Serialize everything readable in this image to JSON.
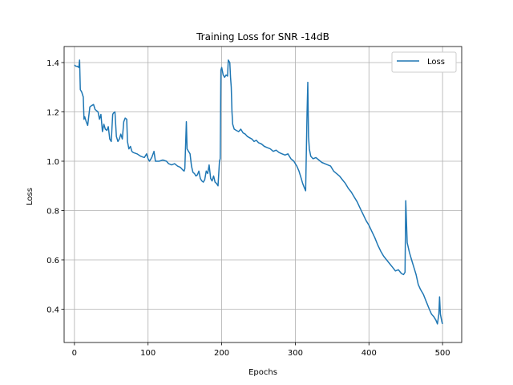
{
  "chart_data": {
    "type": "line",
    "title": "Training Loss for SNR -14dB",
    "xlabel": "Epochs",
    "ylabel": "Loss",
    "xlim": [
      -14,
      526
    ],
    "ylim": [
      0.265,
      1.465
    ],
    "x_ticks": [
      0,
      100,
      200,
      300,
      400,
      500
    ],
    "y_ticks": [
      0.4,
      0.6,
      0.8,
      1.0,
      1.2,
      1.4
    ],
    "y_tick_labels": [
      "0.4",
      "0.6",
      "0.8",
      "1.0",
      "1.2",
      "1.4"
    ],
    "grid": true,
    "legend_position": "top-right",
    "color": "#1f77b4",
    "series": [
      {
        "name": "Loss",
        "points": [
          [
            0,
            1.39
          ],
          [
            2,
            1.385
          ],
          [
            4,
            1.385
          ],
          [
            6,
            1.38
          ],
          [
            7,
            1.41
          ],
          [
            8,
            1.29
          ],
          [
            10,
            1.28
          ],
          [
            12,
            1.26
          ],
          [
            13,
            1.17
          ],
          [
            14,
            1.18
          ],
          [
            16,
            1.16
          ],
          [
            18,
            1.145
          ],
          [
            19,
            1.17
          ],
          [
            21,
            1.22
          ],
          [
            23,
            1.225
          ],
          [
            26,
            1.23
          ],
          [
            28,
            1.21
          ],
          [
            30,
            1.205
          ],
          [
            32,
            1.2
          ],
          [
            34,
            1.17
          ],
          [
            36,
            1.19
          ],
          [
            38,
            1.12
          ],
          [
            40,
            1.15
          ],
          [
            42,
            1.13
          ],
          [
            44,
            1.125
          ],
          [
            46,
            1.14
          ],
          [
            48,
            1.09
          ],
          [
            50,
            1.08
          ],
          [
            52,
            1.19
          ],
          [
            53,
            1.195
          ],
          [
            55,
            1.2
          ],
          [
            57,
            1.1
          ],
          [
            59,
            1.08
          ],
          [
            61,
            1.09
          ],
          [
            63,
            1.11
          ],
          [
            65,
            1.09
          ],
          [
            67,
            1.16
          ],
          [
            69,
            1.175
          ],
          [
            71,
            1.17
          ],
          [
            72,
            1.08
          ],
          [
            74,
            1.05
          ],
          [
            76,
            1.06
          ],
          [
            78,
            1.04
          ],
          [
            80,
            1.035
          ],
          [
            85,
            1.03
          ],
          [
            90,
            1.02
          ],
          [
            95,
            1.015
          ],
          [
            98,
            1.03
          ],
          [
            100,
            1.01
          ],
          [
            102,
            1.0
          ],
          [
            105,
            1.015
          ],
          [
            108,
            1.04
          ],
          [
            110,
            1.0
          ],
          [
            115,
            1.0
          ],
          [
            120,
            1.005
          ],
          [
            125,
            1.0
          ],
          [
            128,
            0.99
          ],
          [
            132,
            0.985
          ],
          [
            136,
            0.99
          ],
          [
            140,
            0.98
          ],
          [
            144,
            0.975
          ],
          [
            147,
            0.965
          ],
          [
            149,
            0.96
          ],
          [
            150,
            0.97
          ],
          [
            152,
            1.16
          ],
          [
            153,
            1.05
          ],
          [
            155,
            1.04
          ],
          [
            157,
            1.03
          ],
          [
            159,
            0.98
          ],
          [
            161,
            0.955
          ],
          [
            163,
            0.95
          ],
          [
            165,
            0.94
          ],
          [
            167,
            0.945
          ],
          [
            169,
            0.96
          ],
          [
            171,
            0.93
          ],
          [
            173,
            0.92
          ],
          [
            175,
            0.915
          ],
          [
            177,
            0.925
          ],
          [
            179,
            0.96
          ],
          [
            181,
            0.95
          ],
          [
            183,
            0.985
          ],
          [
            185,
            0.93
          ],
          [
            187,
            0.92
          ],
          [
            189,
            0.94
          ],
          [
            191,
            0.915
          ],
          [
            193,
            0.91
          ],
          [
            195,
            0.9
          ],
          [
            197,
            1.0
          ],
          [
            198,
            1.01
          ],
          [
            199,
            1.37
          ],
          [
            200,
            1.38
          ],
          [
            202,
            1.35
          ],
          [
            204,
            1.34
          ],
          [
            206,
            1.35
          ],
          [
            208,
            1.345
          ],
          [
            209,
            1.41
          ],
          [
            211,
            1.4
          ],
          [
            212,
            1.34
          ],
          [
            213,
            1.3
          ],
          [
            214,
            1.2
          ],
          [
            215,
            1.15
          ],
          [
            217,
            1.13
          ],
          [
            220,
            1.125
          ],
          [
            223,
            1.12
          ],
          [
            226,
            1.13
          ],
          [
            229,
            1.115
          ],
          [
            232,
            1.11
          ],
          [
            235,
            1.1
          ],
          [
            238,
            1.095
          ],
          [
            241,
            1.09
          ],
          [
            244,
            1.08
          ],
          [
            247,
            1.085
          ],
          [
            250,
            1.075
          ],
          [
            254,
            1.07
          ],
          [
            258,
            1.06
          ],
          [
            262,
            1.055
          ],
          [
            266,
            1.05
          ],
          [
            270,
            1.04
          ],
          [
            274,
            1.045
          ],
          [
            278,
            1.035
          ],
          [
            282,
            1.03
          ],
          [
            286,
            1.025
          ],
          [
            290,
            1.03
          ],
          [
            294,
            1.01
          ],
          [
            298,
            1.0
          ],
          [
            302,
            0.98
          ],
          [
            305,
            0.96
          ],
          [
            308,
            0.93
          ],
          [
            310,
            0.91
          ],
          [
            312,
            0.895
          ],
          [
            314,
            0.88
          ],
          [
            316,
            1.2
          ],
          [
            317,
            1.32
          ],
          [
            318,
            1.1
          ],
          [
            319,
            1.05
          ],
          [
            321,
            1.02
          ],
          [
            324,
            1.01
          ],
          [
            328,
            1.015
          ],
          [
            332,
            1.005
          ],
          [
            336,
            0.995
          ],
          [
            340,
            0.99
          ],
          [
            344,
            0.985
          ],
          [
            348,
            0.98
          ],
          [
            352,
            0.96
          ],
          [
            356,
            0.95
          ],
          [
            360,
            0.94
          ],
          [
            364,
            0.925
          ],
          [
            368,
            0.91
          ],
          [
            372,
            0.89
          ],
          [
            376,
            0.875
          ],
          [
            380,
            0.855
          ],
          [
            384,
            0.835
          ],
          [
            388,
            0.81
          ],
          [
            392,
            0.785
          ],
          [
            396,
            0.76
          ],
          [
            400,
            0.74
          ],
          [
            404,
            0.715
          ],
          [
            408,
            0.69
          ],
          [
            412,
            0.66
          ],
          [
            416,
            0.635
          ],
          [
            420,
            0.615
          ],
          [
            424,
            0.6
          ],
          [
            428,
            0.585
          ],
          [
            432,
            0.57
          ],
          [
            436,
            0.555
          ],
          [
            440,
            0.56
          ],
          [
            444,
            0.545
          ],
          [
            447,
            0.54
          ],
          [
            449,
            0.55
          ],
          [
            450,
            0.84
          ],
          [
            452,
            0.67
          ],
          [
            455,
            0.63
          ],
          [
            458,
            0.6
          ],
          [
            461,
            0.57
          ],
          [
            464,
            0.54
          ],
          [
            467,
            0.5
          ],
          [
            470,
            0.48
          ],
          [
            474,
            0.46
          ],
          [
            478,
            0.43
          ],
          [
            482,
            0.4
          ],
          [
            485,
            0.38
          ],
          [
            488,
            0.37
          ],
          [
            491,
            0.355
          ],
          [
            493,
            0.34
          ],
          [
            495,
            0.38
          ],
          [
            496,
            0.45
          ],
          [
            497,
            0.38
          ],
          [
            499,
            0.35
          ],
          [
            500,
            0.34
          ]
        ]
      }
    ]
  }
}
